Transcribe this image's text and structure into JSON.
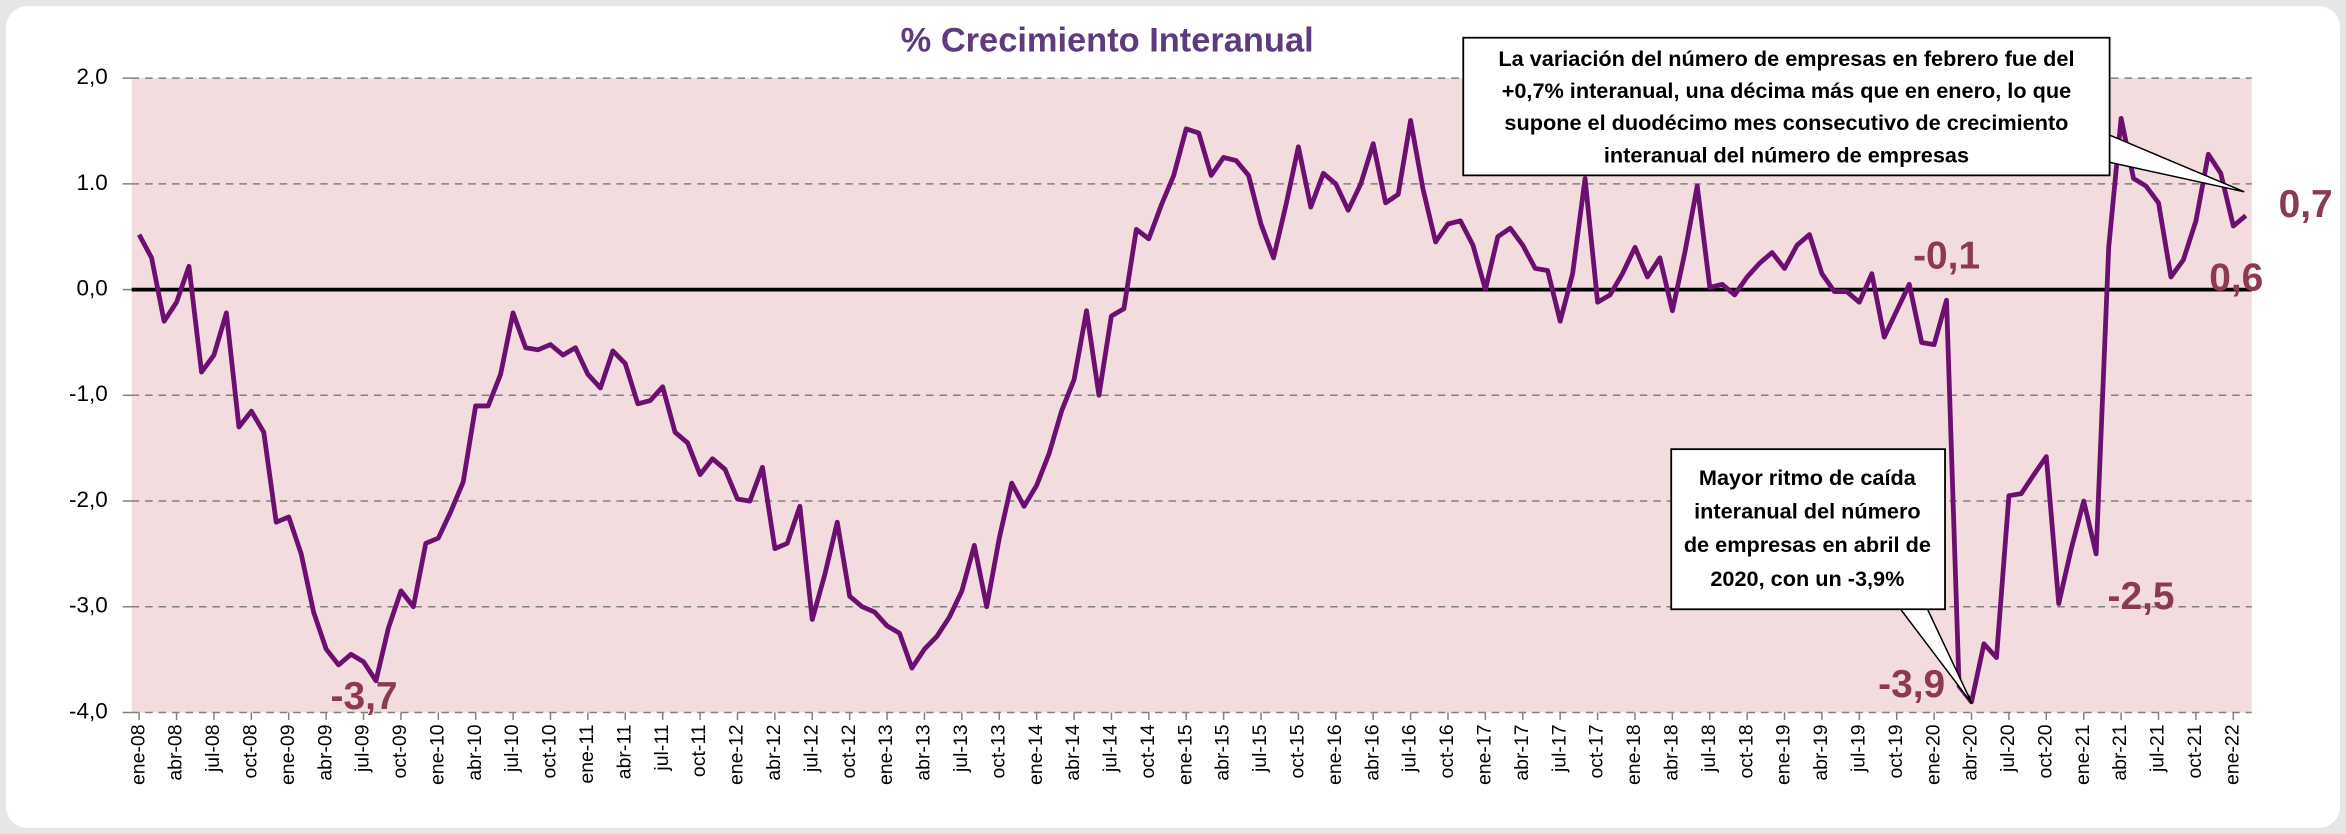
{
  "chart_data": {
    "type": "line",
    "title": "% Crecimiento Interanual",
    "categories": [
      "ene-08",
      null,
      null,
      "abr-08",
      null,
      null,
      "jul-08",
      null,
      null,
      "oct-08",
      null,
      null,
      "ene-09",
      null,
      null,
      "abr-09",
      null,
      null,
      "jul-09",
      null,
      null,
      "oct-09",
      null,
      null,
      "ene-10",
      null,
      null,
      "abr-10",
      null,
      null,
      "jul-10",
      null,
      null,
      "oct-10",
      null,
      null,
      "ene-11",
      null,
      null,
      "abr-11",
      null,
      null,
      "jul-11",
      null,
      null,
      "oct-11",
      null,
      null,
      "ene-12",
      null,
      null,
      "abr-12",
      null,
      null,
      "jul-12",
      null,
      null,
      "oct-12",
      null,
      null,
      "ene-13",
      null,
      null,
      "abr-13",
      null,
      null,
      "jul-13",
      null,
      null,
      "oct-13",
      null,
      null,
      "ene-14",
      null,
      null,
      "abr-14",
      null,
      null,
      "jul-14",
      null,
      null,
      "oct-14",
      null,
      null,
      "ene-15",
      null,
      null,
      "abr-15",
      null,
      null,
      "jul-15",
      null,
      null,
      "oct-15",
      null,
      null,
      "ene-16",
      null,
      null,
      "abr-16",
      null,
      null,
      "jul-16",
      null,
      null,
      "oct-16",
      null,
      null,
      "ene-17",
      null,
      null,
      "abr-17",
      null,
      null,
      "jul-17",
      null,
      null,
      "oct-17",
      null,
      null,
      "ene-18",
      null,
      null,
      "abr-18",
      null,
      null,
      "jul-18",
      null,
      null,
      "oct-18",
      null,
      null,
      "ene-19",
      null,
      null,
      "abr-19",
      null,
      null,
      "jul-19",
      null,
      null,
      "oct-19",
      null,
      null,
      "ene-20",
      null,
      null,
      "abr-20",
      null,
      null,
      "jul-20",
      null,
      null,
      "oct-20",
      null,
      null,
      "ene-21",
      null,
      null,
      "abr-21",
      null,
      null,
      "jul-21",
      null,
      null,
      "oct-21",
      null,
      null,
      "ene-22",
      null
    ],
    "values": [
      0.52,
      0.3,
      -0.3,
      -0.12,
      0.22,
      -0.78,
      -0.62,
      -0.22,
      -1.3,
      -1.15,
      -1.35,
      -2.2,
      -2.15,
      -2.5,
      -3.05,
      -3.4,
      -3.55,
      -3.45,
      -3.52,
      -3.7,
      -3.2,
      -2.85,
      -3.0,
      -2.4,
      -2.35,
      -2.1,
      -1.82,
      -1.1,
      -1.1,
      -0.8,
      -0.22,
      -0.55,
      -0.57,
      -0.52,
      -0.62,
      -0.55,
      -0.8,
      -0.93,
      -0.58,
      -0.7,
      -1.08,
      -1.05,
      -0.92,
      -1.35,
      -1.45,
      -1.75,
      -1.6,
      -1.7,
      -1.98,
      -2.0,
      -1.68,
      -2.45,
      -2.4,
      -2.05,
      -3.12,
      -2.7,
      -2.2,
      -2.9,
      -3.0,
      -3.05,
      -3.18,
      -3.25,
      -3.58,
      -3.4,
      -3.28,
      -3.1,
      -2.85,
      -2.42,
      -3.0,
      -2.35,
      -1.83,
      -2.05,
      -1.85,
      -1.55,
      -1.15,
      -0.85,
      -0.2,
      -1.0,
      -0.25,
      -0.18,
      0.57,
      0.48,
      0.8,
      1.08,
      1.52,
      1.48,
      1.08,
      1.25,
      1.22,
      1.08,
      0.62,
      0.3,
      0.8,
      1.35,
      0.78,
      1.1,
      1.0,
      0.75,
      1.0,
      1.38,
      0.82,
      0.9,
      1.6,
      0.95,
      0.45,
      0.62,
      0.65,
      0.42,
      0.0,
      0.5,
      0.58,
      0.42,
      0.2,
      0.18,
      -0.3,
      0.15,
      1.05,
      -0.12,
      -0.05,
      0.15,
      0.4,
      0.12,
      0.3,
      -0.2,
      0.35,
      0.98,
      0.02,
      0.05,
      -0.05,
      0.12,
      0.25,
      0.35,
      0.2,
      0.42,
      0.52,
      0.15,
      -0.02,
      -0.02,
      -0.12,
      0.15,
      -0.45,
      -0.2,
      0.05,
      -0.5,
      -0.52,
      -0.1,
      -3.75,
      -3.9,
      -3.35,
      -3.48,
      -1.95,
      -1.93,
      -1.75,
      -1.58,
      -2.97,
      -2.45,
      -2.0,
      -2.5,
      0.4,
      1.62,
      1.05,
      0.98,
      0.82,
      0.12,
      0.28,
      0.65,
      1.28,
      1.1,
      0.6,
      0.7
    ],
    "value_labels": [
      null,
      null,
      null,
      null,
      null,
      null,
      null,
      null,
      null,
      null,
      null,
      null,
      null,
      null,
      null,
      null,
      null,
      null,
      null,
      "-3,7",
      null,
      null,
      null,
      null,
      null,
      null,
      null,
      null,
      null,
      null,
      null,
      null,
      null,
      null,
      null,
      null,
      null,
      null,
      null,
      null,
      null,
      null,
      null,
      null,
      null,
      null,
      null,
      null,
      null,
      null,
      null,
      null,
      null,
      null,
      null,
      null,
      null,
      null,
      null,
      null,
      null,
      null,
      null,
      null,
      null,
      null,
      null,
      null,
      null,
      null,
      null,
      null,
      null,
      null,
      null,
      null,
      null,
      null,
      null,
      null,
      null,
      null,
      null,
      null,
      null,
      null,
      null,
      null,
      null,
      null,
      null,
      null,
      null,
      null,
      null,
      null,
      null,
      null,
      null,
      null,
      null,
      null,
      null,
      null,
      null,
      null,
      null,
      null,
      null,
      null,
      null,
      null,
      null,
      null,
      null,
      null,
      null,
      null,
      null,
      null,
      null,
      null,
      null,
      null,
      null,
      null,
      null,
      null,
      null,
      null,
      null,
      null,
      null,
      null,
      null,
      null,
      null,
      null,
      null,
      null,
      null,
      null,
      null,
      null,
      null,
      "-0,1",
      null,
      "-3,9",
      null,
      null,
      null,
      null,
      null,
      null,
      null,
      null,
      null,
      "-2,5",
      null,
      null,
      null,
      null,
      null,
      null,
      null,
      null,
      null,
      null,
      "0,6",
      "0,7"
    ],
    "color": "#6b0f70",
    "ylim": [
      -4,
      2
    ],
    "yticks": [
      {
        "value": 2,
        "label": "2,0"
      },
      {
        "value": 1,
        "label": "1.0"
      },
      {
        "value": 0,
        "label": "0,0"
      },
      {
        "value": -1,
        "label": "-1,0"
      },
      {
        "value": -2,
        "label": "-2,0"
      },
      {
        "value": -3,
        "label": "-3,0"
      },
      {
        "value": -4,
        "label": "-4,0"
      }
    ],
    "grid": true,
    "annotations": [
      [
        "La variación del número de empresas en febrero fue del",
        "+0,7% interanual, una décima más que en enero, lo que",
        "supone el duodécimo mes consecutivo de crecimiento",
        "interanual del número de empresas"
      ],
      [
        "Mayor ritmo de caída",
        "interanual del número",
        "de empresas en abril de",
        "2020, con un -3,9%"
      ]
    ]
  }
}
